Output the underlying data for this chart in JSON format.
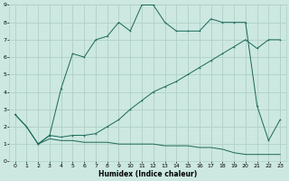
{
  "xlabel": "Humidex (Indice chaleur)",
  "bg_color": "#cce8e0",
  "grid_color": "#b0d0c8",
  "line_color": "#1a6858",
  "xlim": [
    -0.5,
    23.5
  ],
  "ylim": [
    0,
    9
  ],
  "xticks": [
    0,
    1,
    2,
    3,
    4,
    5,
    6,
    7,
    8,
    9,
    10,
    11,
    12,
    13,
    14,
    15,
    16,
    17,
    18,
    19,
    20,
    21,
    22,
    23
  ],
  "yticks": [
    0,
    1,
    2,
    3,
    4,
    5,
    6,
    7,
    8,
    9
  ],
  "line1_x": [
    0,
    1,
    2,
    3,
    4,
    5,
    6,
    7,
    8,
    9,
    10,
    11,
    12,
    13,
    14,
    15,
    16,
    17,
    18,
    19,
    20,
    21,
    22,
    23
  ],
  "line1_y": [
    2.7,
    2.0,
    1.0,
    1.5,
    1.4,
    1.5,
    1.5,
    1.6,
    2.0,
    2.4,
    3.0,
    3.5,
    4.0,
    4.3,
    4.6,
    5.0,
    5.4,
    5.8,
    6.2,
    6.6,
    7.0,
    6.5,
    7.0,
    7.0
  ],
  "line2_x": [
    0,
    1,
    2,
    3,
    4,
    5,
    6,
    7,
    8,
    9,
    10,
    11,
    12,
    13,
    14,
    15,
    16,
    17,
    18,
    19,
    20,
    21,
    22,
    23
  ],
  "line2_y": [
    2.7,
    2.0,
    1.0,
    1.3,
    1.2,
    1.2,
    1.1,
    1.1,
    1.1,
    1.0,
    1.0,
    1.0,
    1.0,
    0.9,
    0.9,
    0.9,
    0.8,
    0.8,
    0.7,
    0.5,
    0.4,
    0.4,
    0.4,
    0.4
  ],
  "line3_x": [
    2,
    3,
    4,
    5,
    6,
    7,
    8,
    9,
    10,
    11,
    12,
    13,
    14,
    15,
    16,
    17,
    18,
    19,
    20,
    21,
    22,
    23
  ],
  "line3_y": [
    1.0,
    1.5,
    4.2,
    6.2,
    6.0,
    7.0,
    7.2,
    8.0,
    7.5,
    9.0,
    9.0,
    8.0,
    7.5,
    7.5,
    7.5,
    8.2,
    8.0,
    8.0,
    8.0,
    3.2,
    1.2,
    2.4
  ]
}
